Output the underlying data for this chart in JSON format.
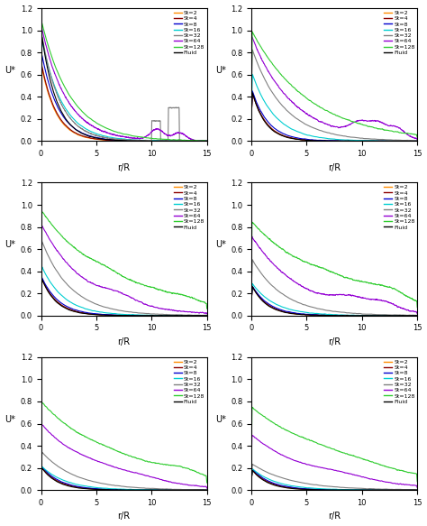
{
  "colors": {
    "St2": "#FF8C00",
    "St4": "#8B0000",
    "St8": "#0000CD",
    "St16": "#00CED1",
    "St32": "#808080",
    "St64": "#9400D3",
    "St128": "#32CD32",
    "Fluid": "#000000"
  },
  "labels": [
    "St=2",
    "St=4",
    "St=8",
    "St=16",
    "St=32",
    "St=64",
    "St=128",
    "Fluid"
  ],
  "xlabel": "r/R",
  "ylabel": "U*",
  "xlim": [
    0,
    15
  ],
  "ylim": [
    0,
    1.2
  ],
  "figsize": [
    4.74,
    5.83
  ],
  "dpi": 100
}
